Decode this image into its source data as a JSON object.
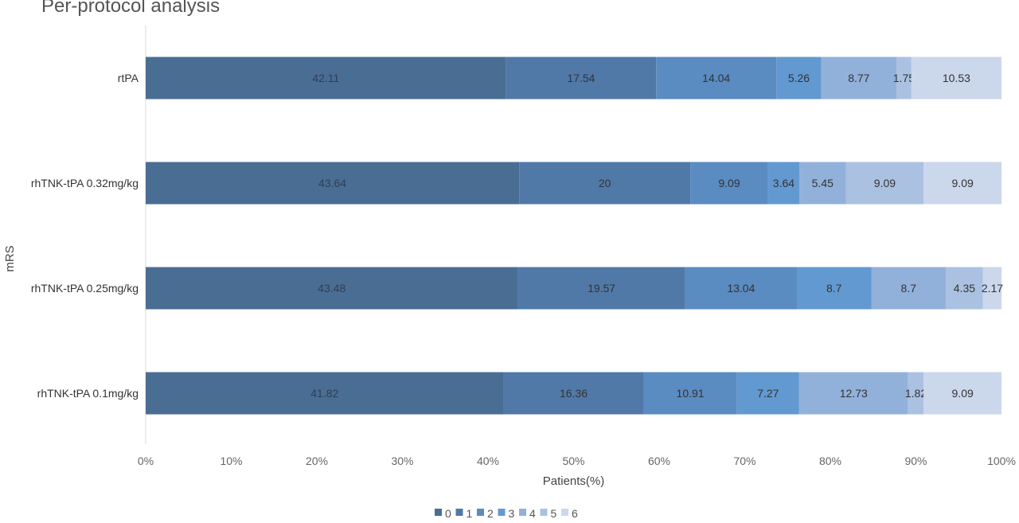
{
  "chart_data": {
    "type": "bar",
    "orientation": "horizontal",
    "stacked": "percent",
    "title": "Per-protocol analysis",
    "xlabel": "Patients(%)",
    "ylabel": "mRS",
    "xlim": [
      0,
      100
    ],
    "x_ticks": [
      "0%",
      "10%",
      "20%",
      "30%",
      "40%",
      "50%",
      "60%",
      "70%",
      "80%",
      "90%",
      "100%"
    ],
    "categories": [
      "rtPA",
      "rhTNK-tPA 0.32mg/kg",
      "rhTNK-tPA 0.25mg/kg",
      "rhTNK-tPA 0.1mg/kg"
    ],
    "series": [
      {
        "name": "0",
        "color": "#4a6d94",
        "values": [
          42.11,
          43.64,
          43.48,
          41.82
        ],
        "labels": [
          "42.11",
          "43.64",
          "43.48",
          "41.82"
        ]
      },
      {
        "name": "1",
        "color": "#5079a8",
        "values": [
          17.54,
          20,
          19.57,
          16.36
        ],
        "labels": [
          "17.54",
          "20",
          "19.57",
          "16.36"
        ]
      },
      {
        "name": "2",
        "color": "#5a8bc1",
        "values": [
          14.04,
          9.09,
          13.04,
          10.91
        ],
        "labels": [
          "14.04",
          "9.09",
          "13.04",
          "10.91"
        ]
      },
      {
        "name": "3",
        "color": "#6399d1",
        "values": [
          5.26,
          3.64,
          8.7,
          7.27
        ],
        "labels": [
          "5.26",
          "3.64",
          "8.7",
          "7.27"
        ]
      },
      {
        "name": "4",
        "color": "#92b1da",
        "values": [
          8.77,
          5.45,
          8.7,
          12.73
        ],
        "labels": [
          "8.77",
          "5.45",
          "8.7",
          "12.73"
        ]
      },
      {
        "name": "5",
        "color": "#abc1e2",
        "values": [
          1.75,
          9.09,
          4.35,
          1.82
        ],
        "labels": [
          "1.75",
          "9.09",
          "4.35",
          "1.82"
        ]
      },
      {
        "name": "6",
        "color": "#cbd7eb",
        "values": [
          10.53,
          9.09,
          2.17,
          9.09
        ],
        "labels": [
          "10.53",
          "9.09",
          "2.17",
          "9.09"
        ]
      }
    ],
    "legend_position": "bottom",
    "grid": false
  }
}
